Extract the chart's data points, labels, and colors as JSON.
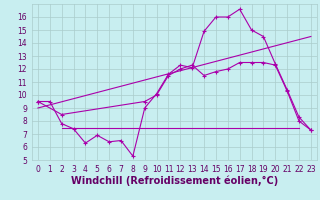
{
  "xlabel": "Windchill (Refroidissement éolien,°C)",
  "bg_color": "#c8eef0",
  "grid_color": "#aacccc",
  "line_color": "#aa00aa",
  "xlim": [
    -0.5,
    23.5
  ],
  "ylim": [
    5,
    17
  ],
  "x_ticks": [
    0,
    1,
    2,
    3,
    4,
    5,
    6,
    7,
    8,
    9,
    10,
    11,
    12,
    13,
    14,
    15,
    16,
    17,
    18,
    19,
    20,
    21,
    22,
    23
  ],
  "y_ticks": [
    5,
    6,
    7,
    8,
    9,
    10,
    11,
    12,
    13,
    14,
    15,
    16
  ],
  "line1_x": [
    0,
    1,
    2,
    3,
    4,
    5,
    6,
    7,
    8,
    9,
    10,
    11,
    12,
    13,
    14,
    15,
    16,
    17,
    18,
    19,
    20,
    21,
    22,
    23
  ],
  "line1_y": [
    9.5,
    9.5,
    7.8,
    7.4,
    6.3,
    6.9,
    6.4,
    6.5,
    5.3,
    9.0,
    10.1,
    11.6,
    12.3,
    12.1,
    14.9,
    16.0,
    16.0,
    16.6,
    15.0,
    14.5,
    12.4,
    10.4,
    8.3,
    7.3
  ],
  "line2_x": [
    0,
    23
  ],
  "line2_y": [
    9.0,
    14.5
  ],
  "line3_x": [
    0,
    2,
    9,
    10,
    11,
    12,
    13,
    14,
    15,
    16,
    17,
    18,
    19,
    20,
    21,
    22,
    23
  ],
  "line3_y": [
    9.5,
    8.5,
    9.5,
    10.0,
    11.5,
    12.0,
    12.3,
    11.5,
    11.8,
    12.0,
    12.5,
    12.5,
    12.5,
    12.3,
    10.3,
    8.0,
    7.3
  ],
  "line4_x": [
    2,
    22
  ],
  "line4_y": [
    7.5,
    7.5
  ],
  "font_color": "#660066",
  "tick_fontsize": 5.5,
  "xlabel_fontsize": 7.0
}
